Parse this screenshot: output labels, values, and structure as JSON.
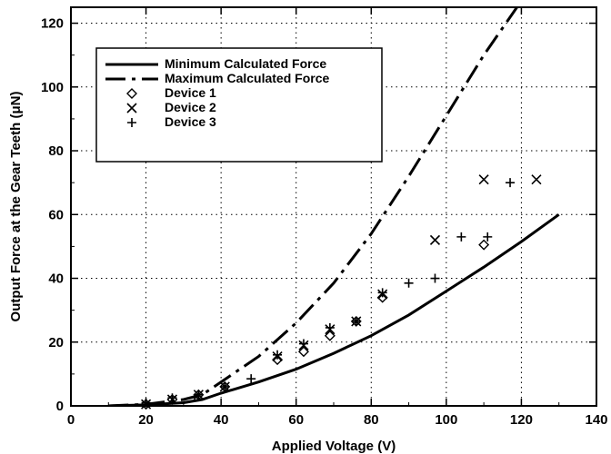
{
  "chart_data": {
    "type": "scatter",
    "title": "",
    "xlabel": "Applied Voltage (V)",
    "ylabel": "Output Force at the Gear Teeth (μN)",
    "xlim": [
      0,
      140
    ],
    "ylim": [
      0,
      125
    ],
    "x_ticks": [
      "0",
      "20",
      "40",
      "60",
      "80",
      "100",
      "120",
      "140"
    ],
    "y_ticks": [
      "0",
      "20",
      "40",
      "60",
      "80",
      "100",
      "120"
    ],
    "grid": "dotted",
    "legend_position": "top-left",
    "series": [
      {
        "name": "Minimum Calculated Force",
        "kind": "line",
        "style": "solid",
        "x": [
          10,
          20,
          30,
          35,
          40,
          50,
          60,
          70,
          80,
          90,
          100,
          110,
          120,
          130
        ],
        "y": [
          0,
          0.3,
          1.0,
          2.0,
          4.0,
          7.5,
          11.5,
          16.5,
          22.0,
          28.5,
          36.0,
          43.5,
          51.5,
          60.0
        ]
      },
      {
        "name": "Maximum Calculated Force",
        "kind": "line",
        "style": "dashed",
        "x": [
          10,
          20,
          30,
          35,
          40,
          50,
          60,
          70,
          80,
          90,
          100,
          110,
          120
        ],
        "y": [
          0,
          0.5,
          2.0,
          3.5,
          7.5,
          15.5,
          26.0,
          38.5,
          54.0,
          72.0,
          91.0,
          110.0,
          127.0
        ]
      },
      {
        "name": "Device 1",
        "kind": "marker",
        "marker": "diamond",
        "x": [
          20,
          27,
          34,
          41,
          55,
          62,
          69,
          76,
          83,
          110
        ],
        "y": [
          0.5,
          2.0,
          3.5,
          6.0,
          14.5,
          17.0,
          22.0,
          26.5,
          34.0,
          50.5
        ]
      },
      {
        "name": "Device 2",
        "kind": "marker",
        "marker": "x",
        "x": [
          20,
          27,
          34,
          41,
          55,
          62,
          69,
          76,
          83,
          97,
          110,
          124
        ],
        "y": [
          0.5,
          2.0,
          3.5,
          6.0,
          15.5,
          19.0,
          24.0,
          26.5,
          35.0,
          52.0,
          71.0,
          71.0
        ]
      },
      {
        "name": "Device 3",
        "kind": "marker",
        "marker": "plus",
        "x": [
          20,
          27,
          34,
          41,
          48,
          55,
          62,
          69,
          76,
          83,
          90,
          97,
          104,
          111,
          117
        ],
        "y": [
          1.0,
          2.5,
          3.5,
          6.0,
          8.5,
          16.0,
          19.5,
          24.5,
          26.5,
          35.5,
          38.5,
          40.0,
          53.0,
          53.0,
          70.0
        ]
      }
    ]
  }
}
